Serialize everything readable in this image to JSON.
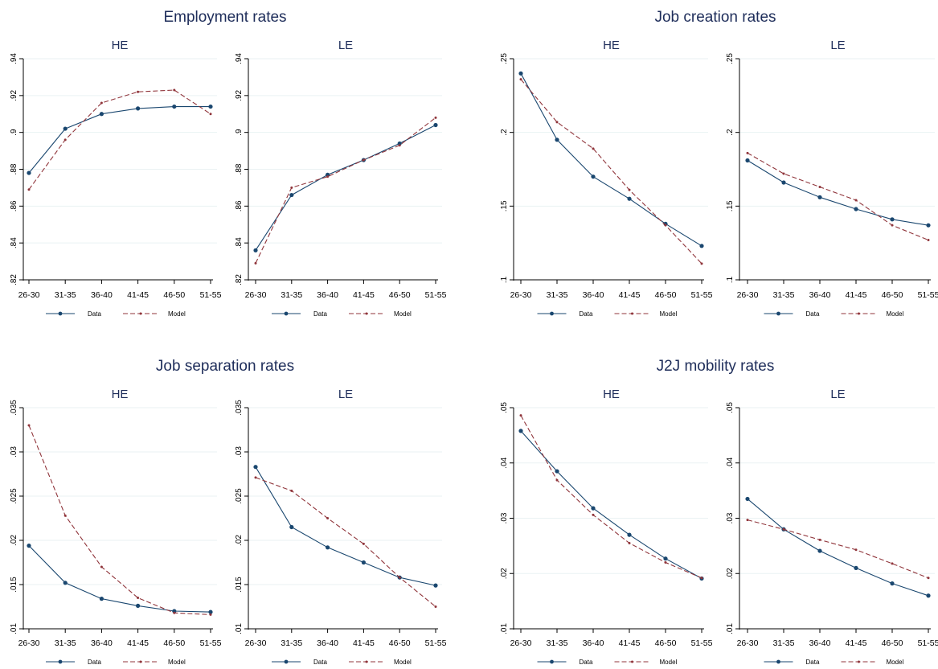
{
  "colors": {
    "data": "#1a476f",
    "model": "#90353b",
    "grid": "#eaf2f3",
    "axis": "#000000",
    "title": "#1e2d5a"
  },
  "chart_data": [
    {
      "type": "line",
      "title": "Employment rates",
      "legend": [
        "Data",
        "Model"
      ],
      "legend_placement": "bottom",
      "panels": [
        {
          "subtitle": "HE",
          "categories": [
            "26-30",
            "31-35",
            "36-40",
            "41-45",
            "46-50",
            "51-55"
          ],
          "ylim": [
            0.82,
            0.94
          ],
          "yticks": [
            0.82,
            0.84,
            0.86,
            0.88,
            0.9,
            0.92,
            0.94
          ],
          "ytick_labels": [
            ".82",
            ".84",
            ".86",
            ".88",
            ".9",
            ".92",
            ".94"
          ],
          "series": [
            {
              "name": "Data",
              "values": [
                0.878,
                0.902,
                0.91,
                0.913,
                0.914,
                0.914
              ]
            },
            {
              "name": "Model",
              "values": [
                0.869,
                0.896,
                0.916,
                0.922,
                0.923,
                0.91
              ]
            }
          ]
        },
        {
          "subtitle": "LE",
          "categories": [
            "26-30",
            "31-35",
            "36-40",
            "41-45",
            "46-50",
            "51-55"
          ],
          "ylim": [
            0.82,
            0.94
          ],
          "yticks": [
            0.82,
            0.84,
            0.86,
            0.88,
            0.9,
            0.92,
            0.94
          ],
          "ytick_labels": [
            ".82",
            ".84",
            ".86",
            ".88",
            ".9",
            ".92",
            ".94"
          ],
          "series": [
            {
              "name": "Data",
              "values": [
                0.836,
                0.866,
                0.877,
                0.885,
                0.894,
                0.904
              ]
            },
            {
              "name": "Model",
              "values": [
                0.829,
                0.87,
                0.876,
                0.885,
                0.893,
                0.908
              ]
            }
          ]
        }
      ]
    },
    {
      "type": "line",
      "title": "Job creation rates",
      "legend": [
        "Data",
        "Model"
      ],
      "legend_placement": "bottom",
      "panels": [
        {
          "subtitle": "HE",
          "categories": [
            "26-30",
            "31-35",
            "36-40",
            "41-45",
            "46-50",
            "51-55"
          ],
          "ylim": [
            0.1,
            0.25
          ],
          "yticks": [
            0.1,
            0.15,
            0.2,
            0.25
          ],
          "ytick_labels": [
            ".1",
            ".15",
            ".2",
            ".25"
          ],
          "series": [
            {
              "name": "Data",
              "values": [
                0.24,
                0.195,
                0.17,
                0.155,
                0.138,
                0.123
              ]
            },
            {
              "name": "Model",
              "values": [
                0.236,
                0.207,
                0.189,
                0.161,
                0.137,
                0.111
              ]
            }
          ]
        },
        {
          "subtitle": "LE",
          "categories": [
            "26-30",
            "31-35",
            "36-40",
            "41-45",
            "46-50",
            "51-55"
          ],
          "ylim": [
            0.1,
            0.25
          ],
          "yticks": [
            0.1,
            0.15,
            0.2,
            0.25
          ],
          "ytick_labels": [
            ".1",
            ".15",
            ".2",
            ".25"
          ],
          "series": [
            {
              "name": "Data",
              "values": [
                0.181,
                0.166,
                0.156,
                0.148,
                0.141,
                0.137
              ]
            },
            {
              "name": "Model",
              "values": [
                0.186,
                0.172,
                0.163,
                0.154,
                0.137,
                0.127
              ]
            }
          ]
        }
      ]
    },
    {
      "type": "line",
      "title": "Job separation rates",
      "legend": [
        "Data",
        "Model"
      ],
      "legend_placement": "bottom",
      "panels": [
        {
          "subtitle": "HE",
          "categories": [
            "26-30",
            "31-35",
            "36-40",
            "41-45",
            "46-50",
            "51-55"
          ],
          "ylim": [
            0.01,
            0.035
          ],
          "yticks": [
            0.01,
            0.015,
            0.02,
            0.025,
            0.03,
            0.035
          ],
          "ytick_labels": [
            ".01",
            ".015",
            ".02",
            ".025",
            ".03",
            ".035"
          ],
          "series": [
            {
              "name": "Data",
              "values": [
                0.0194,
                0.0152,
                0.0134,
                0.0126,
                0.012,
                0.0119
              ]
            },
            {
              "name": "Model",
              "values": [
                0.033,
                0.0228,
                0.017,
                0.0135,
                0.0118,
                0.0116
              ]
            }
          ]
        },
        {
          "subtitle": "LE",
          "categories": [
            "26-30",
            "31-35",
            "36-40",
            "41-45",
            "46-50",
            "51-55"
          ],
          "ylim": [
            0.01,
            0.035
          ],
          "yticks": [
            0.01,
            0.015,
            0.02,
            0.025,
            0.03,
            0.035
          ],
          "ytick_labels": [
            ".01",
            ".015",
            ".02",
            ".025",
            ".03",
            ".035"
          ],
          "series": [
            {
              "name": "Data",
              "values": [
                0.0283,
                0.0215,
                0.0192,
                0.0175,
                0.0158,
                0.0149
              ]
            },
            {
              "name": "Model",
              "values": [
                0.0271,
                0.0256,
                0.0225,
                0.0196,
                0.0158,
                0.0125
              ]
            }
          ]
        }
      ]
    },
    {
      "type": "line",
      "title": "J2J mobility rates",
      "legend": [
        "Data",
        "Model"
      ],
      "legend_placement": "bottom",
      "panels": [
        {
          "subtitle": "HE",
          "categories": [
            "26-30",
            "31-35",
            "36-40",
            "41-45",
            "46-50",
            "51-55"
          ],
          "ylim": [
            0.01,
            0.05
          ],
          "yticks": [
            0.01,
            0.02,
            0.03,
            0.04,
            0.05
          ],
          "ytick_labels": [
            ".01",
            ".02",
            ".03",
            ".04",
            ".05"
          ],
          "series": [
            {
              "name": "Data",
              "values": [
                0.0458,
                0.0385,
                0.0318,
                0.027,
                0.0227,
                0.0191
              ]
            },
            {
              "name": "Model",
              "values": [
                0.0486,
                0.0369,
                0.0306,
                0.0255,
                0.022,
                0.0192
              ]
            }
          ]
        },
        {
          "subtitle": "LE",
          "categories": [
            "26-30",
            "31-35",
            "36-40",
            "41-45",
            "46-50",
            "51-55"
          ],
          "ylim": [
            0.01,
            0.05
          ],
          "yticks": [
            0.01,
            0.02,
            0.03,
            0.04,
            0.05
          ],
          "ytick_labels": [
            ".01",
            ".02",
            ".03",
            ".04",
            ".05"
          ],
          "series": [
            {
              "name": "Data",
              "values": [
                0.0335,
                0.028,
                0.0241,
                0.021,
                0.0182,
                0.016
              ]
            },
            {
              "name": "Model",
              "values": [
                0.0297,
                0.028,
                0.0261,
                0.0243,
                0.0218,
                0.0192
              ]
            }
          ]
        }
      ]
    }
  ]
}
